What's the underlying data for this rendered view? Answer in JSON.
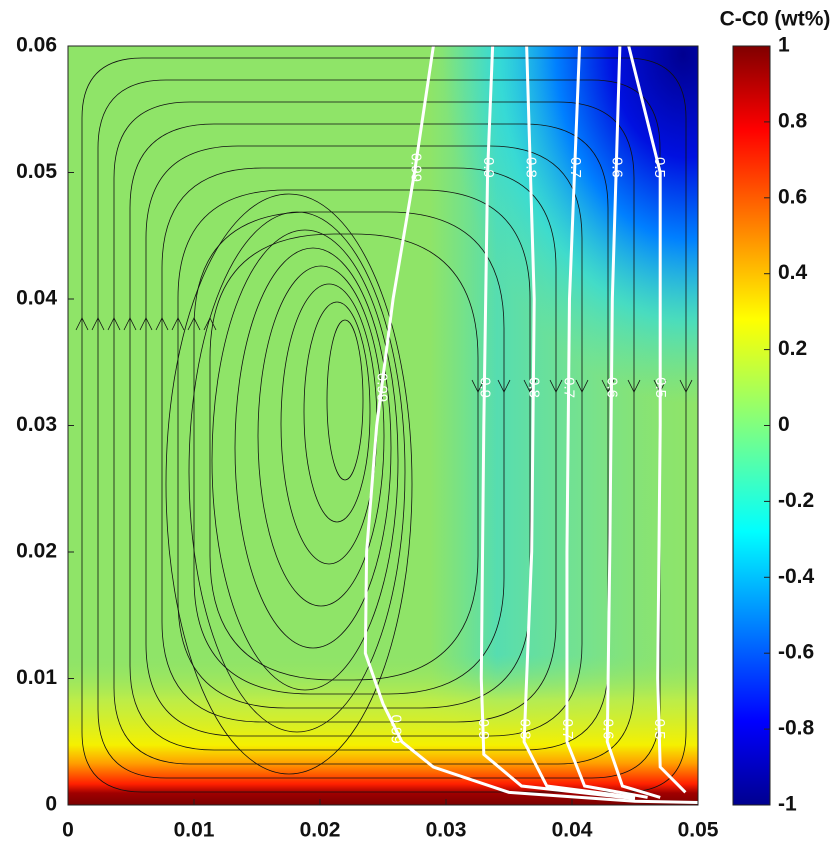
{
  "chart_data": {
    "type": "contour",
    "colorbar_title": "C-C0 (wt%)",
    "colormap": "jet",
    "xlim": [
      0,
      0.05
    ],
    "xticks": [
      0,
      0.01,
      0.02,
      0.03,
      0.04,
      0.05
    ],
    "ylim": [
      0,
      0.06
    ],
    "yticks": [
      0,
      0.01,
      0.02,
      0.03,
      0.04,
      0.05,
      0.06
    ],
    "clim": [
      -1,
      1
    ],
    "cticks": [
      -1,
      -0.8,
      -0.6,
      -0.4,
      -0.2,
      0,
      0.2,
      0.4,
      0.6,
      0.8,
      1
    ],
    "contour_color": "#ffffff",
    "contours": [
      {
        "level": 0.99,
        "x": [
          0.029,
          0.0275,
          0.0258,
          0.0245,
          0.0237,
          0.0236,
          0.025,
          0.0265,
          0.029,
          0.035,
          0.045,
          0.05
        ],
        "y": [
          0.06,
          0.05,
          0.04,
          0.03,
          0.02,
          0.012,
          0.008,
          0.005,
          0.003,
          0.001,
          0.0003,
          0.0002
        ]
      },
      {
        "level": 0.9,
        "x": [
          0.0337,
          0.0333,
          0.033,
          0.0328,
          0.033,
          0.036,
          0.045
        ],
        "y": [
          0.06,
          0.05,
          0.03,
          0.01,
          0.004,
          0.0015,
          0.0005
        ]
      },
      {
        "level": 0.8,
        "x": [
          0.0364,
          0.037,
          0.0368,
          0.0362,
          0.038,
          0.045
        ],
        "y": [
          0.06,
          0.04,
          0.02,
          0.005,
          0.0015,
          0.0006
        ]
      },
      {
        "level": 0.7,
        "x": [
          0.0406,
          0.0398,
          0.0396,
          0.0396,
          0.041,
          0.046
        ],
        "y": [
          0.06,
          0.04,
          0.02,
          0.005,
          0.0015,
          0.0006
        ]
      },
      {
        "level": 0.6,
        "x": [
          0.0438,
          0.0432,
          0.043,
          0.0428,
          0.044,
          0.047
        ],
        "y": [
          0.06,
          0.04,
          0.02,
          0.005,
          0.0015,
          0.0006
        ]
      },
      {
        "level": 0.5,
        "x": [
          0.0445,
          0.047,
          0.047,
          0.0468,
          0.047,
          0.049
        ],
        "y": [
          0.06,
          0.05,
          0.03,
          0.01,
          0.003,
          0.001
        ]
      }
    ]
  }
}
